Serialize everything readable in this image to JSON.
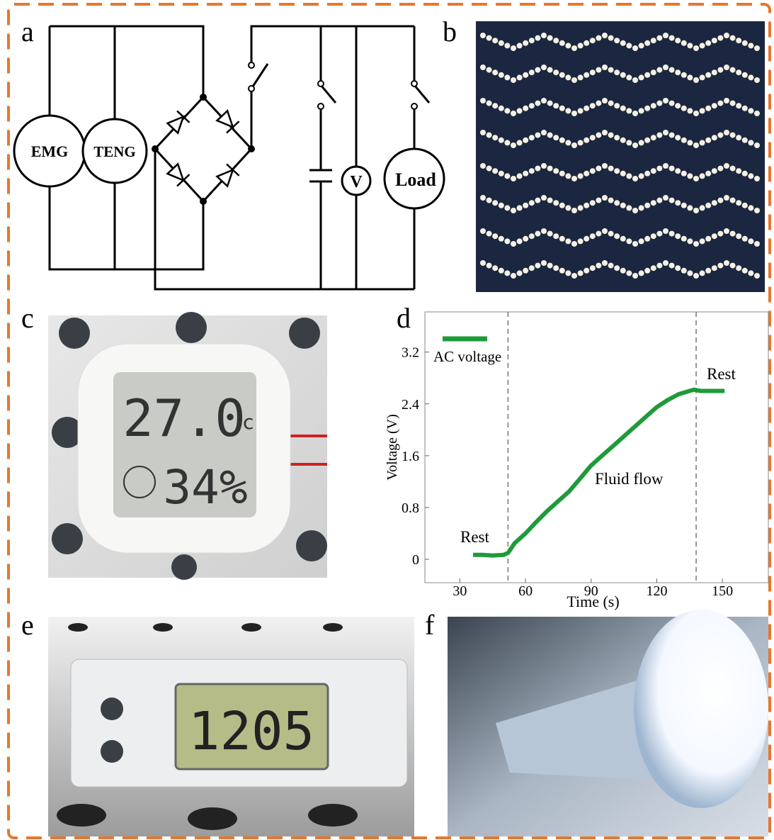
{
  "panels": {
    "a": {
      "label": "a",
      "sources": [
        "EMG",
        "TENG"
      ],
      "meter": "V",
      "load": "Load"
    },
    "b": {
      "label": "b"
    },
    "c": {
      "label": "c",
      "temperature": "27.0",
      "temperature_unit": "c",
      "humidity": "34%"
    },
    "d": {
      "label": "d"
    },
    "e": {
      "label": "e",
      "time": "1205"
    },
    "f": {
      "label": "f"
    }
  },
  "chart_data": {
    "type": "line",
    "x_label": "Time (s)",
    "y_label": "Voltage (V)",
    "x": [
      36,
      40,
      45,
      50,
      52,
      55,
      60,
      65,
      70,
      75,
      80,
      85,
      90,
      95,
      100,
      105,
      110,
      115,
      120,
      125,
      130,
      135,
      137,
      140,
      145,
      151
    ],
    "series": [
      {
        "name": "AC voltage",
        "color": "#1f9a3a",
        "values": [
          0.07,
          0.07,
          0.06,
          0.07,
          0.1,
          0.25,
          0.4,
          0.58,
          0.75,
          0.9,
          1.05,
          1.25,
          1.45,
          1.6,
          1.75,
          1.9,
          2.05,
          2.2,
          2.35,
          2.46,
          2.55,
          2.6,
          2.62,
          2.6,
          2.6,
          2.6
        ]
      }
    ],
    "annotations": [
      "Rest",
      "Fluid flow",
      "Rest"
    ],
    "vlines": [
      52,
      138
    ],
    "xlim": [
      14,
      171
    ],
    "ylim": [
      -0.36,
      3.82
    ],
    "xticks": [
      30,
      60,
      90,
      120,
      150
    ],
    "yticks": [
      0,
      0.8,
      1.6,
      2.4,
      3.2
    ]
  }
}
